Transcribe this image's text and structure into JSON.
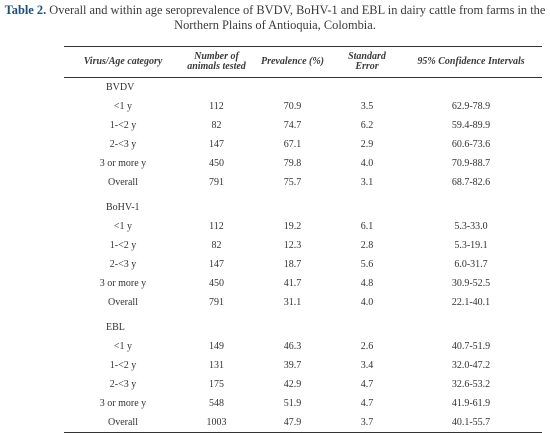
{
  "caption": {
    "label": "Table 2.",
    "text": "Overall and within age seroprevalence of BVDV, BoHV-1 and EBL in dairy cattle from farms in the Northern Plains of Antioquia, Colombia."
  },
  "table": {
    "headers": [
      "Virus/Age category",
      "Number of animals tested",
      "Prevalence (%)",
      "Standard Error",
      "95% Confidence Intervals"
    ],
    "groups": [
      {
        "name": "BVDV",
        "rows": [
          [
            "<1 y",
            "112",
            "70.9",
            "3.5",
            "62.9-78.9"
          ],
          [
            "1-<2 y",
            "82",
            "74.7",
            "6.2",
            "59.4-89.9"
          ],
          [
            "2-<3 y",
            "147",
            "67.1",
            "2.9",
            "60.6-73.6"
          ],
          [
            "3 or more y",
            "450",
            "79.8",
            "4.0",
            "70.9-88.7"
          ],
          [
            "Overall",
            "791",
            "75.7",
            "3.1",
            "68.7-82.6"
          ]
        ]
      },
      {
        "name": "BoHV-1",
        "rows": [
          [
            "<1 y",
            "112",
            "19.2",
            "6.1",
            "5.3-33.0"
          ],
          [
            "1-<2 y",
            "82",
            "12.3",
            "2.8",
            "5.3-19.1"
          ],
          [
            "2-<3 y",
            "147",
            "18.7",
            "5.6",
            "6.0-31.7"
          ],
          [
            "3 or more y",
            "450",
            "41.7",
            "4.8",
            "30.9-52.5"
          ],
          [
            "Overall",
            "791",
            "31.1",
            "4.0",
            "22.1-40.1"
          ]
        ]
      },
      {
        "name": "EBL",
        "rows": [
          [
            "<1 y",
            "149",
            "46.3",
            "2.6",
            "40.7-51.9"
          ],
          [
            "1-<2 y",
            "131",
            "39.7",
            "3.4",
            "32.0-47.2"
          ],
          [
            "2-<3 y",
            "175",
            "42.9",
            "4.7",
            "32.6-53.2"
          ],
          [
            "3 or more y",
            "548",
            "51.9",
            "4.7",
            "41.9-61.9"
          ],
          [
            "Overall",
            "1003",
            "47.9",
            "3.7",
            "40.1-55.7"
          ]
        ]
      }
    ]
  }
}
